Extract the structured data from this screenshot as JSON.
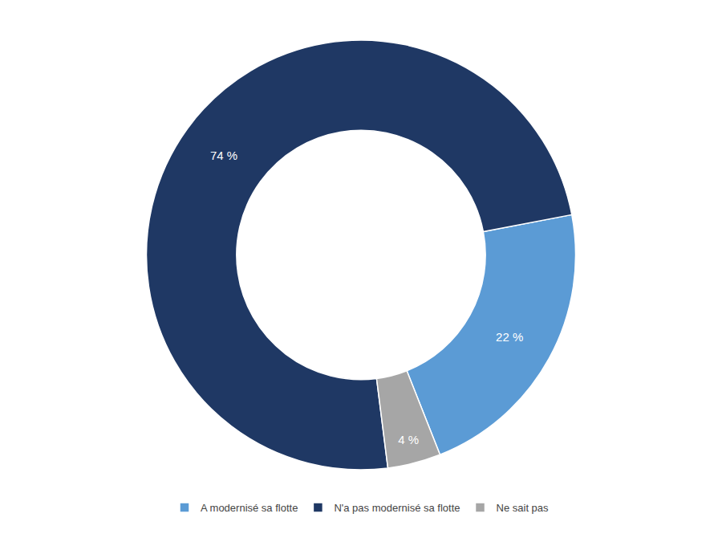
{
  "chart_data": {
    "type": "pie",
    "categories": [
      "A modernisé sa flotte",
      "N'a pas modernisé sa flotte",
      "Ne sait pas"
    ],
    "values": [
      22,
      74,
      4
    ],
    "value_labels": [
      "22 %",
      "74 %",
      "4 %"
    ],
    "colors": [
      "#5B9BD5",
      "#1F3864",
      "#A6A6A6"
    ],
    "data_labels": true
  }
}
